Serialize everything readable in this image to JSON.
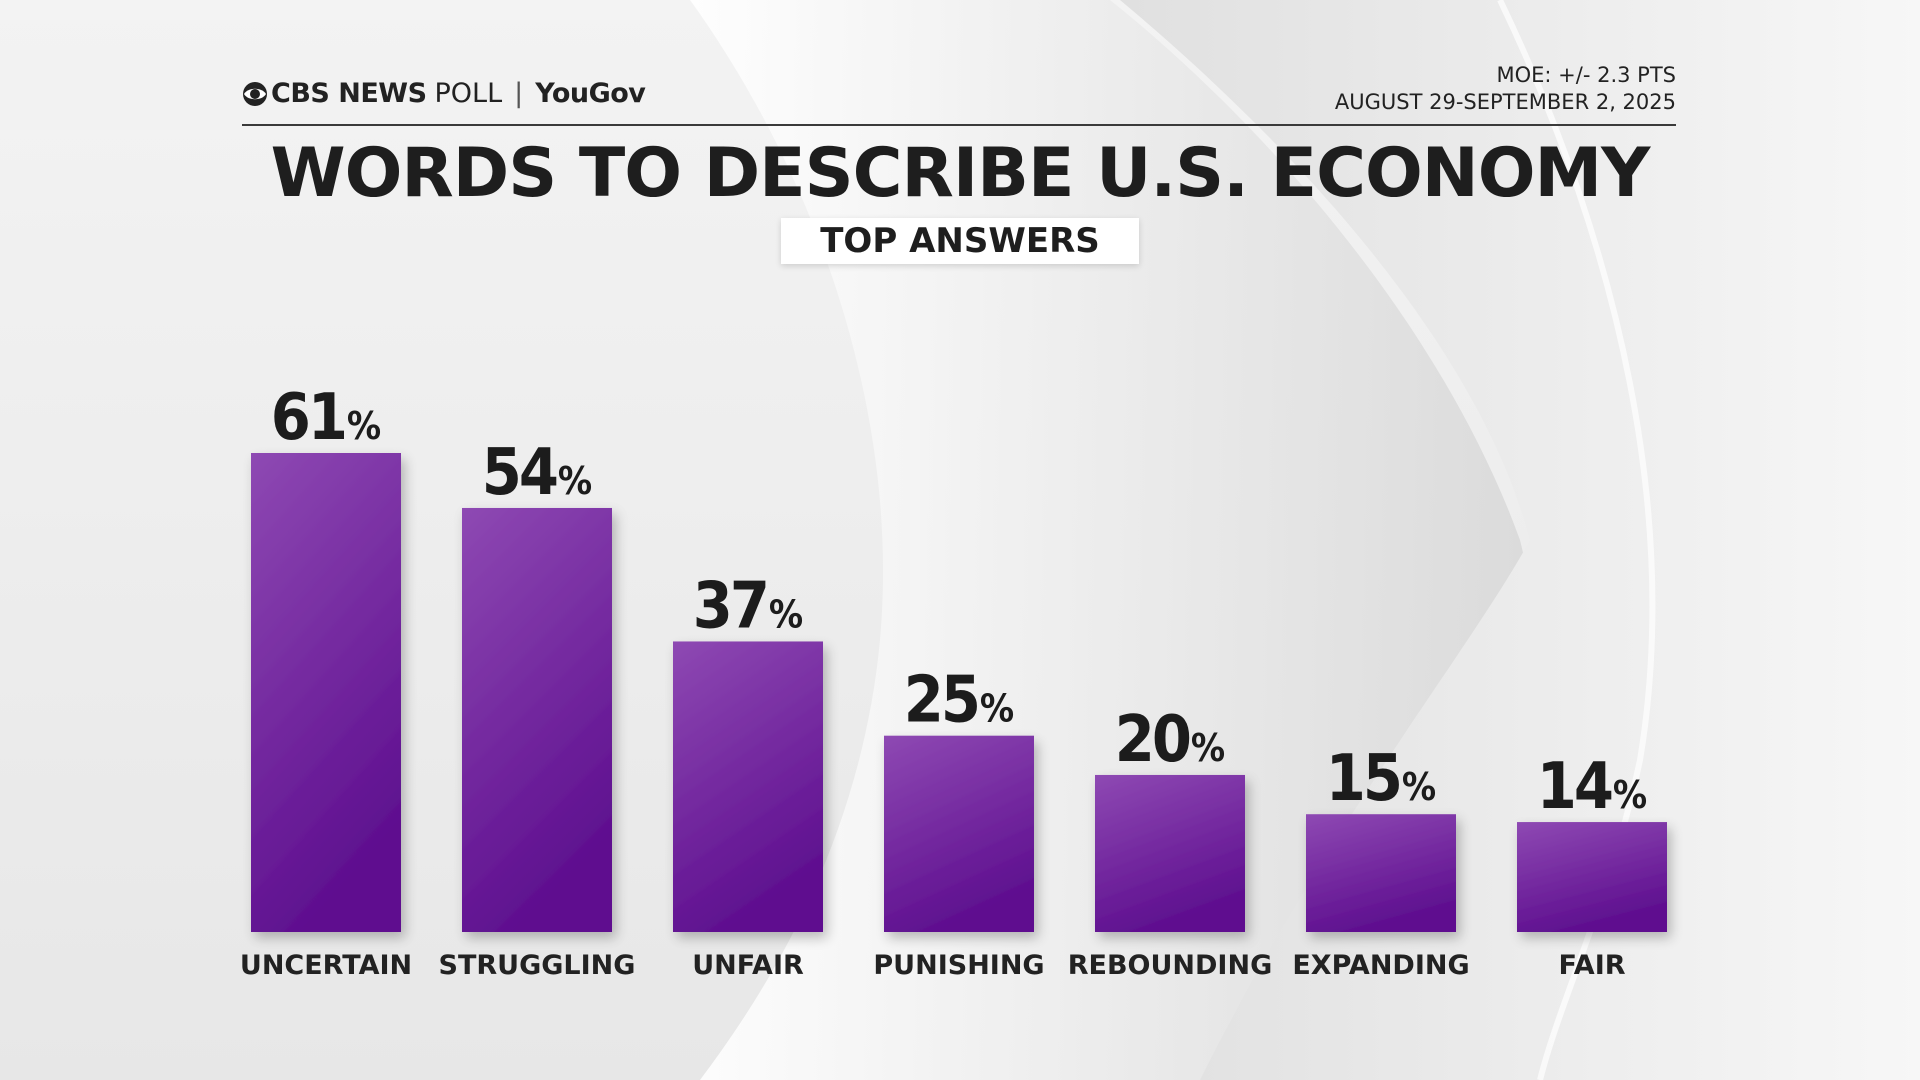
{
  "header": {
    "brand": "CBS NEWS",
    "poll": "POLL",
    "separator": "|",
    "partner": "YouGov",
    "moe": "MOE: +/- 2.3 PTS",
    "dates": "AUGUST 29-SEPTEMBER 2, 2025"
  },
  "colors": {
    "bar_top": "#8e49b3",
    "bar_bottom": "#5e0f8f",
    "text": "#1c1c1c"
  },
  "chart_data": {
    "type": "bar",
    "title": "WORDS TO DESCRIBE U.S. ECONOMY",
    "subtitle": "TOP ANSWERS",
    "categories": [
      "UNCERTAIN",
      "STRUGGLING",
      "UNFAIR",
      "PUNISHING",
      "REBOUNDING",
      "EXPANDING",
      "FAIR"
    ],
    "values": [
      61,
      54,
      37,
      25,
      20,
      15,
      14
    ],
    "value_suffix": "%",
    "xlabel": "",
    "ylabel": "",
    "ylim": [
      0,
      61
    ],
    "grid": false,
    "legend": "none"
  }
}
